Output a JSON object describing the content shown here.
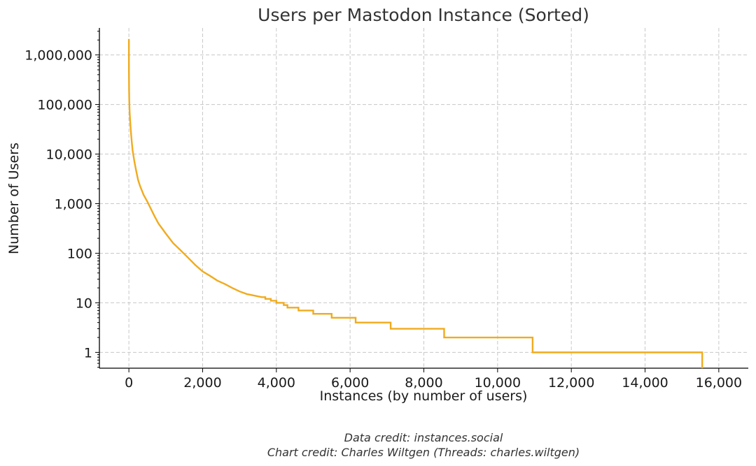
{
  "chart_data": {
    "type": "line",
    "title": "Users per Mastodon Instance (Sorted)",
    "xlabel": "Instances (by number of users)",
    "ylabel": "Number of Users",
    "xlim": [
      -800,
      16800
    ],
    "ylim": [
      0.48,
      3500000
    ],
    "yscale": "log",
    "grid": true,
    "x_ticks": [
      0,
      2000,
      4000,
      6000,
      8000,
      10000,
      12000,
      14000,
      16000
    ],
    "x_tick_labels": [
      "0",
      "2,000",
      "4,000",
      "6,000",
      "8,000",
      "10,000",
      "12,000",
      "14,000",
      "16,000"
    ],
    "y_ticks": [
      1,
      10,
      100,
      1000,
      10000,
      100000,
      1000000
    ],
    "y_tick_labels": [
      "1",
      "10",
      "100",
      "1,000",
      "10,000",
      "100,000",
      "1,000,000"
    ],
    "series": [
      {
        "color": "#f0ab1e",
        "x": [
          0,
          1,
          5,
          10,
          20,
          40,
          60,
          80,
          100,
          150,
          200,
          250,
          300,
          400,
          500,
          700,
          800,
          1000,
          1200,
          1400,
          1600,
          1800,
          2000,
          2200,
          2400,
          2600,
          2800,
          3000,
          3200,
          3400,
          3600,
          3700,
          3850,
          4000,
          4200,
          4300,
          4600,
          5000,
          5500,
          6150,
          7100,
          8550,
          10950,
          15550,
          15550
        ],
        "y": [
          2100000,
          500000,
          200000,
          120000,
          70000,
          40000,
          25000,
          17000,
          12000,
          7000,
          4500,
          3000,
          2300,
          1500,
          1100,
          550,
          400,
          250,
          160,
          115,
          82,
          58,
          43,
          35,
          28,
          24,
          20,
          17,
          15,
          14,
          13,
          12,
          11,
          10,
          9,
          8,
          7,
          6,
          5,
          4,
          3,
          2,
          1,
          1,
          0.48
        ]
      }
    ]
  },
  "credits": {
    "data": "Data credit: instances.social",
    "chart": "Chart credit: Charles Wiltgen (Threads: charles.wiltgen)"
  }
}
